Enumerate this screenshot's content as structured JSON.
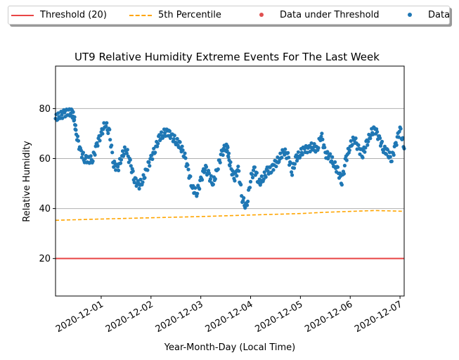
{
  "chart_data": {
    "type": "scatter",
    "title": "UT9 Relative Humidity Extreme Events For The Last Week",
    "xlabel": "Year-Month-Day (Local Time)",
    "ylabel": "Relative Humidity",
    "x_range": [
      "2020-11-30T02:00",
      "2020-12-07T02:00"
    ],
    "ylim": [
      5,
      97
    ],
    "yticks": [
      20,
      40,
      60,
      80
    ],
    "xticks": [
      "2020-12-01",
      "2020-12-02",
      "2020-12-03",
      "2020-12-04",
      "2020-12-05",
      "2020-12-06",
      "2020-12-07"
    ],
    "grid": "horizontal",
    "legend_position": "top, outside",
    "threshold": {
      "name": "Threshold (20)",
      "value": 20,
      "color": "#e84545"
    },
    "percentile": {
      "name": "5th Percentile",
      "color": "#ffa500",
      "x": [
        "2020-11-30T02:00",
        "2020-12-01T00:00",
        "2020-12-02T00:00",
        "2020-12-03T00:00",
        "2020-12-04T00:00",
        "2020-12-05T00:00",
        "2020-12-05T12:00",
        "2020-12-06T12:00",
        "2020-12-07T02:00"
      ],
      "y": [
        35.3,
        35.8,
        36.3,
        36.8,
        37.4,
        38.0,
        38.5,
        39.2,
        38.9
      ]
    },
    "under_threshold": {
      "name": "Data under Threshold",
      "color": "#e05050",
      "points": []
    },
    "data": {
      "name": "Data",
      "color": "#1f77b4",
      "x": [
        "2020-11-30T02:00",
        "2020-11-30T04:00",
        "2020-11-30T06:00",
        "2020-11-30T08:00",
        "2020-11-30T10:00",
        "2020-11-30T11:00",
        "2020-11-30T12:00",
        "2020-11-30T14:00",
        "2020-11-30T16:00",
        "2020-11-30T18:00",
        "2020-11-30T20:00",
        "2020-11-30T22:00",
        "2020-12-01T00:00",
        "2020-12-01T02:00",
        "2020-12-01T04:00",
        "2020-12-01T06:00",
        "2020-12-01T08:00",
        "2020-12-01T10:00",
        "2020-12-01T12:00",
        "2020-12-01T14:00",
        "2020-12-01T16:00",
        "2020-12-01T18:00",
        "2020-12-01T20:00",
        "2020-12-01T22:00",
        "2020-12-02T00:00",
        "2020-12-02T02:00",
        "2020-12-02T04:00",
        "2020-12-02T06:00",
        "2020-12-02T08:00",
        "2020-12-02T10:00",
        "2020-12-02T12:00",
        "2020-12-02T14:00",
        "2020-12-02T16:00",
        "2020-12-02T18:00",
        "2020-12-02T20:00",
        "2020-12-02T22:00",
        "2020-12-03T00:00",
        "2020-12-03T02:00",
        "2020-12-03T04:00",
        "2020-12-03T06:00",
        "2020-12-03T08:00",
        "2020-12-03T10:00",
        "2020-12-03T12:00",
        "2020-12-03T13:00",
        "2020-12-03T14:00",
        "2020-12-03T16:00",
        "2020-12-03T18:00",
        "2020-12-03T20:00",
        "2020-12-03T22:00",
        "2020-12-04T00:00",
        "2020-12-04T02:00",
        "2020-12-04T04:00",
        "2020-12-04T06:00",
        "2020-12-04T08:00",
        "2020-12-04T10:00",
        "2020-12-04T12:00",
        "2020-12-04T14:00",
        "2020-12-04T16:00",
        "2020-12-04T18:00",
        "2020-12-04T20:00",
        "2020-12-04T22:00",
        "2020-12-05T00:00",
        "2020-12-05T02:00",
        "2020-12-05T04:00",
        "2020-12-05T06:00",
        "2020-12-05T08:00",
        "2020-12-05T10:00",
        "2020-12-05T12:00",
        "2020-12-05T14:00",
        "2020-12-05T16:00",
        "2020-12-05T18:00",
        "2020-12-05T20:00",
        "2020-12-05T22:00",
        "2020-12-06T00:00",
        "2020-12-06T02:00",
        "2020-12-06T04:00",
        "2020-12-06T06:00",
        "2020-12-06T08:00",
        "2020-12-06T10:00",
        "2020-12-06T12:00",
        "2020-12-06T14:00",
        "2020-12-06T16:00",
        "2020-12-06T18:00",
        "2020-12-06T20:00",
        "2020-12-06T22:00",
        "2020-12-07T00:00",
        "2020-12-07T02:00"
      ],
      "y": [
        76,
        77,
        78,
        79,
        78,
        76,
        70,
        63,
        60,
        59,
        60,
        66,
        70,
        74,
        70,
        58,
        56,
        61,
        64,
        58,
        52,
        49,
        51,
        56,
        60,
        64,
        68,
        70,
        71,
        69,
        67,
        65,
        62,
        55,
        48,
        46,
        51,
        57,
        53,
        50,
        56,
        62,
        65,
        63,
        58,
        52,
        56,
        44,
        40,
        52,
        56,
        50,
        52,
        55,
        56,
        58,
        60,
        63,
        61,
        55,
        60,
        62,
        64,
        64,
        65,
        63,
        70,
        62,
        61,
        58,
        55,
        51,
        60,
        65,
        68,
        64,
        62,
        66,
        70,
        72,
        68,
        64,
        62,
        60,
        66,
        72,
        64
      ]
    }
  }
}
